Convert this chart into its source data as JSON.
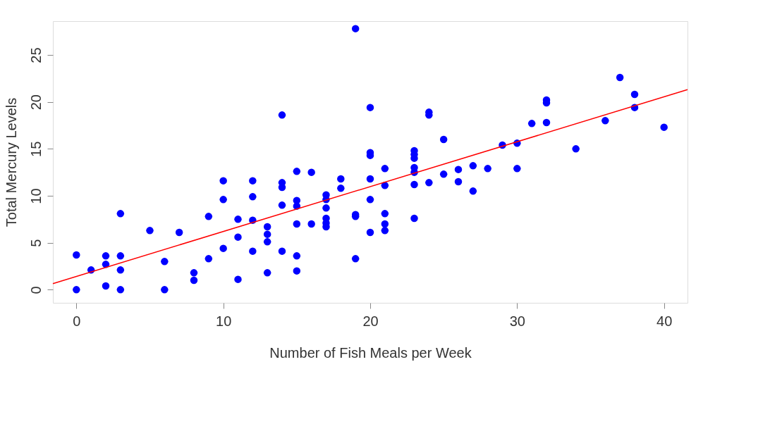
{
  "chart_data": {
    "type": "scatter",
    "xlabel": "Number of Fish Meals per Week",
    "ylabel": "Total Mercury Levels",
    "xlim": [
      -1.6,
      41.6
    ],
    "ylim": [
      -1.4,
      28.6
    ],
    "xticks": [
      0,
      10,
      20,
      30,
      40
    ],
    "yticks": [
      0,
      5,
      10,
      15,
      20,
      25
    ],
    "grid": false,
    "marker": "circle",
    "series": [
      {
        "color": "#0000ff",
        "x": [
          0,
          0,
          1,
          2,
          2,
          2,
          3,
          3,
          3,
          3,
          5,
          6,
          6,
          7,
          8,
          8,
          9,
          9,
          10,
          10,
          10,
          11,
          11,
          11,
          12,
          12,
          12,
          12,
          13,
          13,
          13,
          13,
          14,
          14,
          14,
          14,
          14,
          15,
          15,
          15,
          15,
          15,
          15,
          16,
          16,
          17,
          17,
          17,
          17,
          17,
          17,
          18,
          18,
          19,
          19,
          19,
          19,
          20,
          20,
          20,
          20,
          20,
          20,
          21,
          21,
          21,
          21,
          21,
          23,
          23,
          23,
          23,
          23,
          23,
          23,
          24,
          24,
          24,
          25,
          25,
          26,
          26,
          27,
          27,
          28,
          29,
          30,
          30,
          31,
          32,
          32,
          32,
          34,
          36,
          37,
          38,
          38,
          40
        ],
        "values": [
          3.7,
          0,
          2.1,
          3.6,
          2.7,
          0.4,
          8.1,
          3.6,
          2.1,
          0,
          6.3,
          3.0,
          0,
          6.1,
          1.8,
          1.0,
          7.8,
          3.3,
          11.6,
          9.6,
          4.4,
          7.5,
          5.6,
          1.1,
          11.6,
          9.9,
          7.4,
          4.1,
          6.7,
          5.9,
          5.1,
          1.8,
          18.6,
          11.4,
          10.9,
          9.0,
          4.1,
          12.6,
          9.5,
          8.9,
          7.0,
          3.6,
          2.0,
          12.5,
          7.0,
          10.1,
          9.6,
          8.7,
          7.6,
          7.1,
          6.7,
          11.8,
          10.8,
          27.8,
          8.0,
          7.8,
          3.3,
          19.4,
          14.6,
          14.3,
          11.8,
          9.6,
          6.1,
          12.9,
          11.1,
          8.1,
          7.0,
          6.3,
          14.8,
          14.4,
          14.0,
          13.0,
          12.5,
          11.2,
          7.6,
          18.9,
          18.6,
          11.4,
          16.0,
          12.3,
          12.8,
          11.5,
          13.2,
          10.5,
          12.9,
          15.4,
          15.6,
          12.9,
          17.7,
          20.2,
          19.9,
          17.8,
          15.0,
          18.0,
          22.6,
          20.8,
          19.4,
          17.3
        ]
      },
      {
        "type": "line",
        "color": "#ff0000",
        "line_style": "solid",
        "marker": "none",
        "x": [
          -1.6,
          41.6
        ],
        "values": [
          0.65,
          21.3
        ]
      }
    ]
  }
}
